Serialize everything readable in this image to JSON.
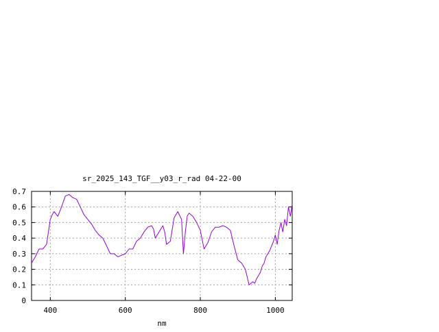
{
  "chart_data": {
    "type": "line",
    "title": "sr_2025_143_TGF__y03_r_rad 04-22-00",
    "xlabel": "nm",
    "ylabel": "",
    "xlim": [
      350,
      1045
    ],
    "ylim": [
      0,
      0.7
    ],
    "x_ticks": [
      400,
      600,
      800,
      1000
    ],
    "x_tick_labels": [
      "400",
      "600",
      "800",
      "1000"
    ],
    "y_ticks": [
      0,
      0.1,
      0.2,
      0.3,
      0.4,
      0.5,
      0.6,
      0.7
    ],
    "y_tick_labels": [
      "0",
      "0.1",
      "0.2",
      "0.3",
      "0.4",
      "0.5",
      "0.6",
      "0.7"
    ],
    "grid": true,
    "series": [
      {
        "color": "#9400d3",
        "x": [
          350,
          360,
          370,
          380,
          390,
          400,
          405,
          410,
          420,
          430,
          440,
          450,
          455,
          460,
          470,
          480,
          490,
          500,
          510,
          520,
          530,
          540,
          550,
          560,
          570,
          580,
          590,
          600,
          610,
          620,
          630,
          640,
          650,
          660,
          670,
          675,
          680,
          690,
          700,
          705,
          710,
          720,
          730,
          740,
          750,
          755,
          760,
          765,
          770,
          780,
          790,
          800,
          810,
          820,
          830,
          840,
          850,
          860,
          870,
          880,
          890,
          900,
          910,
          920,
          925,
          930,
          935,
          940,
          945,
          950,
          955,
          960,
          965,
          970,
          975,
          980,
          985,
          990,
          995,
          1000,
          1005,
          1010,
          1015,
          1020,
          1025,
          1030,
          1035,
          1040,
          1045
        ],
        "y": [
          0.24,
          0.28,
          0.33,
          0.33,
          0.36,
          0.52,
          0.55,
          0.57,
          0.54,
          0.6,
          0.67,
          0.68,
          0.67,
          0.66,
          0.65,
          0.6,
          0.55,
          0.52,
          0.49,
          0.45,
          0.42,
          0.4,
          0.35,
          0.3,
          0.3,
          0.28,
          0.29,
          0.3,
          0.33,
          0.33,
          0.38,
          0.4,
          0.44,
          0.47,
          0.48,
          0.46,
          0.4,
          0.44,
          0.48,
          0.44,
          0.36,
          0.38,
          0.53,
          0.57,
          0.52,
          0.3,
          0.44,
          0.54,
          0.56,
          0.54,
          0.5,
          0.45,
          0.33,
          0.37,
          0.44,
          0.47,
          0.47,
          0.48,
          0.47,
          0.45,
          0.35,
          0.26,
          0.24,
          0.2,
          0.15,
          0.1,
          0.11,
          0.12,
          0.11,
          0.14,
          0.16,
          0.18,
          0.22,
          0.24,
          0.28,
          0.3,
          0.32,
          0.35,
          0.38,
          0.42,
          0.36,
          0.45,
          0.5,
          0.44,
          0.52,
          0.48,
          0.6,
          0.54,
          0.62
        ]
      }
    ]
  }
}
